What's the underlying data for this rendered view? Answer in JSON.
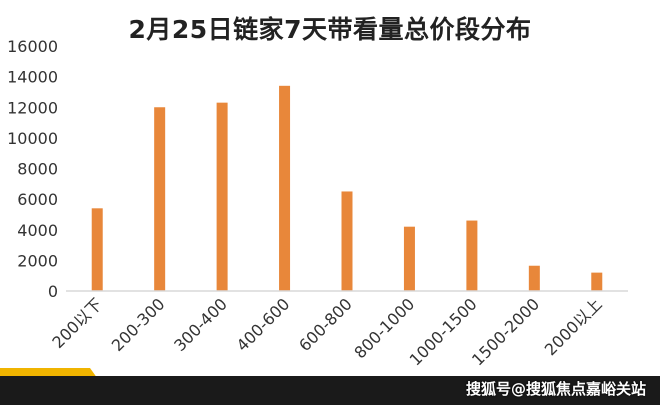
{
  "chart_data": {
    "type": "bar",
    "title": "2月25日链家7天带看量总价段分布",
    "categories": [
      "200以下",
      "200-300",
      "300-400",
      "400-600",
      "600-800",
      "800-1000",
      "1000-1500",
      "1500-2000",
      "2000以上"
    ],
    "values": [
      5400,
      12000,
      12300,
      13400,
      6500,
      4200,
      4600,
      1650,
      1200
    ],
    "ylim": [
      0,
      16000
    ],
    "yticks": [
      0,
      2000,
      4000,
      6000,
      8000,
      10000,
      12000,
      14000,
      16000
    ],
    "grid": false,
    "bar_color": "#e8873a"
  },
  "watermark": "搜狐号@搜狐焦点嘉峪关站",
  "colors": {
    "accent": "#f0b400",
    "footer": "#1a1a1a"
  }
}
